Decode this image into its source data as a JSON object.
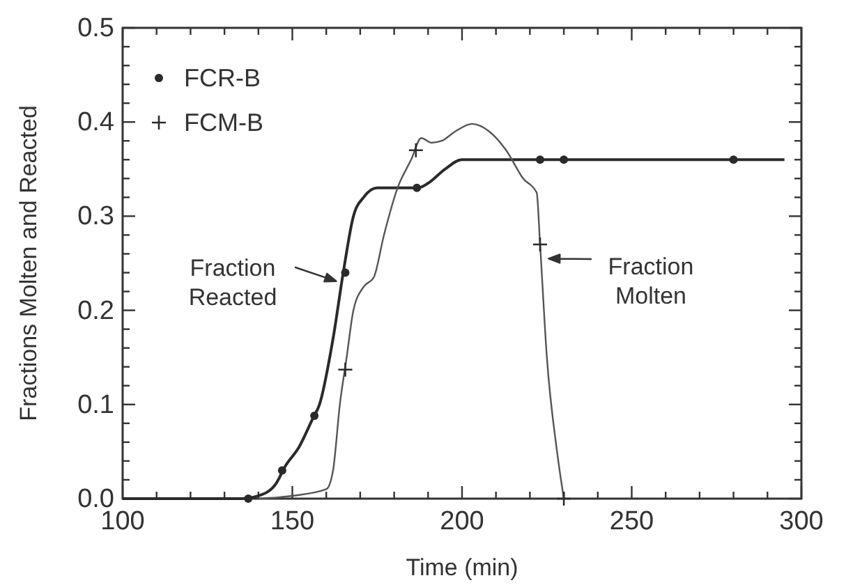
{
  "chart_data": {
    "type": "line",
    "xlabel": "Time (min)",
    "ylabel": "Fractions Molten and Reacted",
    "xlim": [
      100,
      300
    ],
    "ylim": [
      0,
      0.5
    ],
    "xticks": [
      100,
      {
        "value": 110,
        "label": null
      },
      {
        "value": 120,
        "label": null
      },
      {
        "value": 130,
        "label": null
      },
      {
        "value": 140,
        "label": null
      },
      150,
      {
        "value": 160,
        "label": null
      },
      {
        "value": 170,
        "label": null
      },
      {
        "value": 180,
        "label": null
      },
      {
        "value": 190,
        "label": null
      },
      200,
      {
        "value": 210,
        "label": null
      },
      {
        "value": 220,
        "label": null
      },
      {
        "value": 230,
        "label": null
      },
      {
        "value": 240,
        "label": null
      },
      250,
      {
        "value": 260,
        "label": null
      },
      {
        "value": 270,
        "label": null
      },
      {
        "value": 280,
        "label": null
      },
      {
        "value": 290,
        "label": null
      },
      300
    ],
    "yticks": [
      {
        "value": 0,
        "label": "0.0"
      },
      {
        "value": 0.02,
        "label": null
      },
      {
        "value": 0.04,
        "label": null
      },
      {
        "value": 0.06,
        "label": null
      },
      {
        "value": 0.08,
        "label": null
      },
      0.1,
      {
        "value": 0.12,
        "label": null
      },
      {
        "value": 0.14,
        "label": null
      },
      {
        "value": 0.16,
        "label": null
      },
      {
        "value": 0.18,
        "label": null
      },
      0.2,
      {
        "value": 0.22,
        "label": null
      },
      {
        "value": 0.24,
        "label": null
      },
      {
        "value": 0.26,
        "label": null
      },
      {
        "value": 0.28,
        "label": null
      },
      0.3,
      {
        "value": 0.32,
        "label": null
      },
      {
        "value": 0.34,
        "label": null
      },
      {
        "value": 0.36,
        "label": null
      },
      {
        "value": 0.38,
        "label": null
      },
      0.4,
      {
        "value": 0.42,
        "label": null
      },
      {
        "value": 0.44,
        "label": null
      },
      {
        "value": 0.46,
        "label": null
      },
      {
        "value": 0.48,
        "label": null
      },
      0.5
    ],
    "grid": false,
    "legend": "top left",
    "series": [
      {
        "color": "#2a2a2a",
        "line_style": "solid",
        "marker": "none",
        "x": [
          100,
          135,
          140,
          145,
          148,
          152,
          156,
          158,
          162,
          165,
          168,
          171,
          175,
          180,
          187,
          190,
          195,
          200,
          210,
          295
        ],
        "values": [
          0,
          0,
          0.003,
          0.015,
          0.035,
          0.055,
          0.085,
          0.1,
          0.17,
          0.24,
          0.3,
          0.32,
          0.33,
          0.33,
          0.33,
          0.335,
          0.35,
          0.36,
          0.36,
          0.36
        ]
      },
      {
        "color": "#555555",
        "line_style": "solid",
        "marker": "none",
        "x": [
          140,
          150,
          160,
          162,
          164,
          166,
          168,
          171,
          174,
          177,
          181,
          185,
          188,
          191,
          194,
          198,
          203,
          208,
          213,
          218,
          222,
          223,
          225,
          228,
          230
        ],
        "values": [
          0,
          0.003,
          0.01,
          0.03,
          0.1,
          0.15,
          0.2,
          0.225,
          0.235,
          0.28,
          0.33,
          0.36,
          0.383,
          0.378,
          0.38,
          0.39,
          0.398,
          0.39,
          0.37,
          0.34,
          0.325,
          0.27,
          0.15,
          0.05,
          0
        ]
      },
      {
        "type": "scatter",
        "name": "FCR-B",
        "color": "#2a2a2a",
        "marker": "circle",
        "x": [
          137,
          147,
          156.5,
          165.6,
          186.7,
          223,
          230,
          280
        ],
        "values": [
          0,
          0.03,
          0.088,
          0.24,
          0.33,
          0.36,
          0.36,
          0.36
        ]
      },
      {
        "type": "scatter",
        "name": "FCM-B",
        "color": "#2a2a2a",
        "marker": "cross",
        "x": [
          165.6,
          186.4,
          223,
          230
        ],
        "values": [
          0.137,
          0.37,
          0.27,
          0
        ]
      }
    ],
    "annotations": [
      {
        "text": "Fraction\nReacted",
        "x": 163.7,
        "y": 0.23
      },
      {
        "text": "Fraction\nMolten",
        "x": 224.7,
        "y": 0.255
      }
    ]
  }
}
